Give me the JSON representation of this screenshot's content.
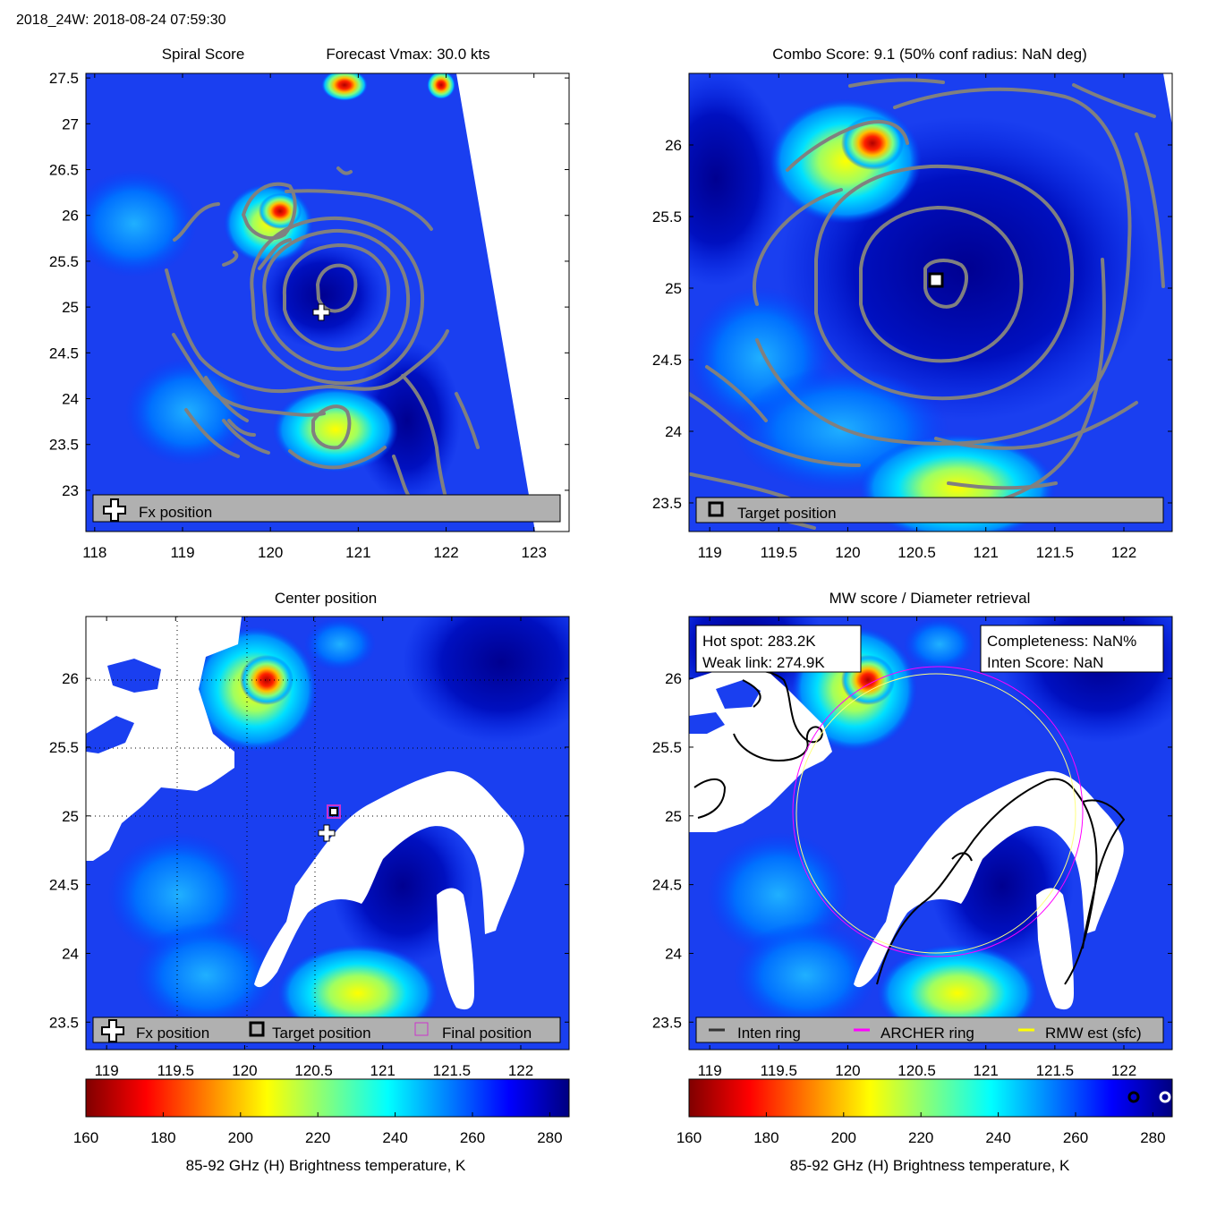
{
  "figure_title": "2018_24W: 2018-08-24 07:59:30",
  "colorbar_label": "85-92 GHz (H) Brightness temperature, K",
  "colorbar_ticks": [
    160,
    180,
    200,
    220,
    240,
    260,
    280
  ],
  "colormap_stops": [
    "#800000",
    "#ff0000",
    "#ff8000",
    "#ffff00",
    "#80ff80",
    "#00ffff",
    "#0080ff",
    "#0000ff",
    "#000080"
  ],
  "contour_color": "#808080",
  "background_color": "#1a3ff0",
  "legend_colors": {
    "inten_ring": "#333333",
    "archer_ring": "#ff00ff",
    "rmw_est": "#ffff00",
    "final_position": "#cc33cc"
  },
  "chart_data": [
    {
      "type": "heatmap",
      "title_left": "Spiral Score",
      "title_right": "Forecast Vmax: 30.0 kts",
      "xlim": [
        117.9,
        123.4
      ],
      "ylim": [
        22.55,
        27.55
      ],
      "xticks": [
        118,
        119,
        120,
        121,
        122,
        123
      ],
      "yticks": [
        23,
        23.5,
        24,
        24.5,
        25,
        25.5,
        26,
        26.5,
        27,
        27.5
      ],
      "markers": {
        "fx_position": [
          120.6,
          24.88
        ]
      },
      "legend": {
        "fx": "Fx position"
      }
    },
    {
      "type": "heatmap",
      "title": "Combo Score: 9.1  (50% conf radius: NaN deg)",
      "xlim": [
        118.85,
        122.35
      ],
      "ylim": [
        23.3,
        26.5
      ],
      "xticks": [
        119,
        119.5,
        120,
        120.5,
        121,
        121.5,
        122
      ],
      "yticks": [
        23.5,
        24,
        24.5,
        25,
        25.5,
        26
      ],
      "markers": {
        "target_position": [
          120.65,
          25.03
        ]
      },
      "legend": {
        "target": "Target position"
      }
    },
    {
      "type": "heatmap",
      "title": "Center position",
      "xlim": [
        118.85,
        122.35
      ],
      "ylim": [
        23.3,
        26.45
      ],
      "xticks": [
        119,
        119.5,
        120,
        120.5,
        121,
        121.5,
        122
      ],
      "yticks": [
        23.5,
        24,
        24.5,
        25,
        25.5,
        26
      ],
      "markers": {
        "fx_position": [
          120.6,
          24.88
        ],
        "target_position": [
          120.65,
          25.03
        ],
        "final_position": [
          120.65,
          25.03
        ]
      },
      "legend": {
        "fx": "Fx position",
        "target": "Target position",
        "final": "Final position"
      }
    },
    {
      "type": "heatmap",
      "title": "MW score / Diameter retrieval",
      "xlim": [
        118.85,
        122.35
      ],
      "ylim": [
        23.3,
        26.45
      ],
      "xticks": [
        119,
        119.5,
        120,
        120.5,
        121,
        121.5,
        122
      ],
      "yticks": [
        23.5,
        24,
        24.5,
        25,
        25.5,
        26
      ],
      "hot_spot": "Hot spot: 283.2K",
      "weak_link": "Weak link: 274.9K",
      "completeness": "Completeness: NaN%",
      "inten_score": "Inten Score: NaN",
      "rings": {
        "center": [
          120.65,
          25.05
        ],
        "archer_radius_deg": 0.95,
        "rmw_radius_deg": 0.92
      },
      "legend": {
        "inten": "Inten ring",
        "archer": "ARCHER ring",
        "rmw": "RMW est (sfc)"
      }
    }
  ]
}
